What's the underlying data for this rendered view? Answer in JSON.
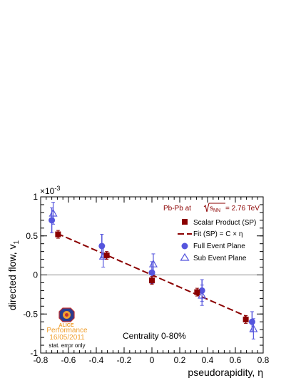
{
  "chart_data": {
    "type": "scatter",
    "xlabel": "pseudorapidity, η",
    "ylabel": "directed flow, v",
    "ylabel_sub": "1",
    "yexponent_label": "×10",
    "yexponent_power": "-3",
    "xlim": [
      -0.8,
      0.8
    ],
    "ylim": [
      -1.0,
      1.0
    ],
    "xticks": [
      -0.8,
      -0.6,
      -0.4,
      -0.2,
      0,
      0.2,
      0.4,
      0.6,
      0.8
    ],
    "xtick_labels": [
      "-0.8",
      "-0.6",
      "-0.4",
      "-0.2",
      "0",
      "0.2",
      "0.4",
      "0.6",
      "0.8"
    ],
    "yticks": [
      -1,
      -0.5,
      0,
      0.5,
      1
    ],
    "ytick_labels": [
      "-1",
      "-0.5",
      "0",
      "0.5",
      "1"
    ],
    "header": {
      "prefix": "Pb-Pb at ",
      "sqrt_s": "s",
      "sqrt_sub": "NN",
      "suffix": " = 2.76 TeV"
    },
    "series": [
      {
        "name": "Scalar Product (SP)",
        "marker": "square",
        "color": "#8b0000",
        "x": [
          -0.675,
          -0.325,
          0.0,
          0.325,
          0.675
        ],
        "y": [
          0.52,
          0.25,
          -0.07,
          -0.22,
          -0.57
        ],
        "yerr": [
          0.05,
          0.05,
          0.05,
          0.05,
          0.05
        ]
      },
      {
        "name": "Fit (SP) = C × η",
        "marker": "dashed-line",
        "color": "#8b0000",
        "slope": -0.78,
        "x_range": [
          -0.68,
          0.68
        ]
      },
      {
        "name": "Full Event Plane",
        "marker": "circle",
        "color": "#5555dd",
        "x": [
          -0.72,
          -0.36,
          0.0,
          0.36,
          0.72
        ],
        "y": [
          0.7,
          0.37,
          0.03,
          -0.2,
          -0.6
        ],
        "yerr": [
          0.16,
          0.15,
          0.14,
          0.14,
          0.13
        ]
      },
      {
        "name": "Sub Event Plane",
        "marker": "open-triangle",
        "color": "#5555dd",
        "x": [
          -0.71,
          -0.35,
          0.01,
          0.36,
          0.73
        ],
        "y": [
          0.79,
          0.24,
          0.14,
          -0.26,
          -0.69
        ],
        "yerr": [
          0.14,
          0.14,
          0.13,
          0.13,
          0.13
        ]
      }
    ],
    "annotations": {
      "centrality": "Centrality 0-80%",
      "logo_name": "ALICE",
      "performance": "Performance",
      "date": "16/05/2011",
      "stat_error": "stat. error only"
    },
    "colors": {
      "sp": "#8b0000",
      "ep": "#5555dd",
      "zero_line": "#888888",
      "logo_orange": "#f0a030"
    }
  }
}
